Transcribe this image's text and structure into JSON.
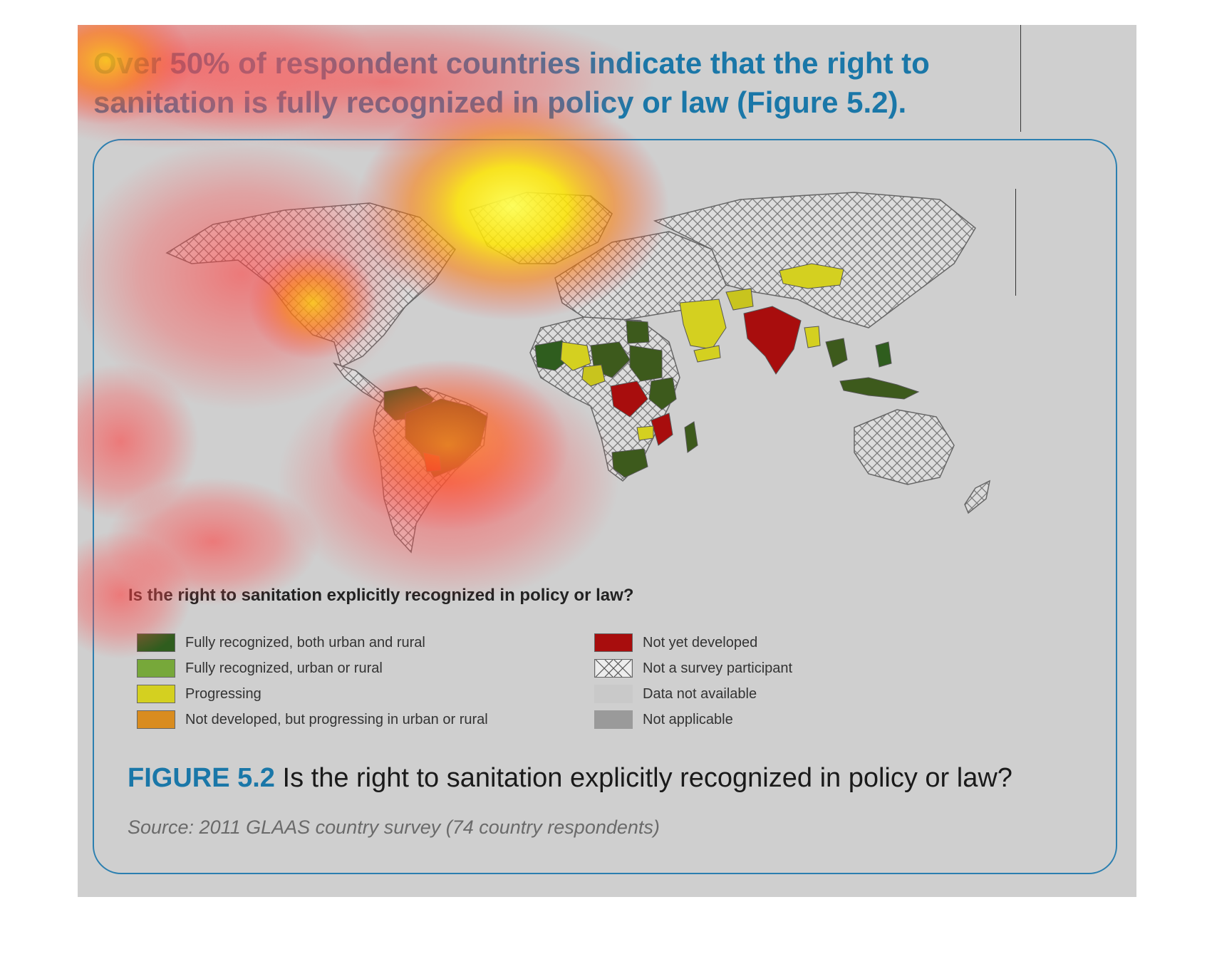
{
  "headline": {
    "text": "Over 50% of respondent countries indicate that the right to sanitation is fully recognized in policy or law (Figure 5.2)."
  },
  "legend": {
    "title": "Is the right to sanitation explicitly recognized in policy or law?",
    "left_items": [
      {
        "label": "Fully recognized, both urban and rural",
        "color": "#2f5d1e",
        "pattern": "solid",
        "color_name": "dark-green"
      },
      {
        "label": "Fully recognized, urban or rural",
        "color": "#77a83a",
        "pattern": "solid",
        "color_name": "light-green"
      },
      {
        "label": "Progressing",
        "color": "#d4d020",
        "pattern": "solid",
        "color_name": "yellow"
      },
      {
        "label": "Not developed, but progressing in urban or rural",
        "color": "#d98c1f",
        "pattern": "solid",
        "color_name": "orange"
      }
    ],
    "right_items": [
      {
        "label": "Not yet developed",
        "color": "#a80d0d",
        "pattern": "solid",
        "color_name": "dark-red"
      },
      {
        "label": "Not a survey participant",
        "color": "#ededed",
        "pattern": "crosshatch",
        "color_name": "white-hatched"
      },
      {
        "label": "Data not available",
        "color": "#c9c9c9",
        "pattern": "solid",
        "color_name": "light-grey"
      },
      {
        "label": "Not applicable",
        "color": "#9a9a9a",
        "pattern": "solid",
        "color_name": "grey"
      }
    ]
  },
  "caption": {
    "label": "FIGURE 5.2",
    "text": "Is the right to sanitation explicitly recognized in policy or law?"
  },
  "source": "Source: 2011 GLAAS country survey (74 country respondents)",
  "colors": {
    "accent_blue": "#1a77a8",
    "frame_border": "#2b7fb0",
    "background": "#cfcfcf",
    "hatch_line": "#7a7a7a"
  },
  "overlay": {
    "type": "attention heatmap",
    "colors": [
      "#ff3030",
      "#ff8a00",
      "#ffee00"
    ]
  }
}
